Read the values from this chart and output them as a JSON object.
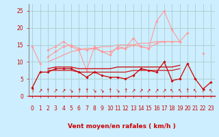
{
  "background_color": "#cceeff",
  "grid_color": "#aacccc",
  "x_labels": [
    "0",
    "1",
    "2",
    "3",
    "4",
    "5",
    "6",
    "7",
    "8",
    "9",
    "10",
    "11",
    "12",
    "13",
    "14",
    "15",
    "16",
    "17",
    "18",
    "19",
    "20",
    "21",
    "22",
    "23"
  ],
  "wind_arrows": [
    "↑",
    "↗",
    "↑",
    "↗",
    "↗",
    "↘",
    "↑",
    "↑",
    "↘",
    "↘",
    "↑",
    "↘",
    "↑",
    "↗",
    "↗",
    "↗",
    "↗",
    "↗",
    "↖",
    "↖",
    "↑",
    "↖",
    "↗",
    "↖"
  ],
  "xlabel": "Vent moyen/en rafales ( km/h )",
  "xlabel_color": "#cc0000",
  "xlabel_fontsize": 6.5,
  "yticks": [
    0,
    5,
    10,
    15,
    20,
    25
  ],
  "ylim": [
    0,
    27
  ],
  "xlim": [
    -0.5,
    23.5
  ],
  "tick_color": "#cc0000",
  "tick_fontsize": 5.5,
  "arrow_fontsize": 5.5,
  "series": [
    {
      "y": [
        14.5,
        9.5,
        null,
        null,
        null,
        null,
        null,
        null,
        null,
        null,
        null,
        null,
        null,
        null,
        null,
        null,
        null,
        null,
        null,
        null,
        null,
        null,
        null,
        null
      ],
      "color": "#ff9999",
      "linewidth": 0.8,
      "marker": "D",
      "markersize": 1.8,
      "zorder": 2
    },
    {
      "y": [
        null,
        null,
        13.5,
        14.5,
        16,
        14.5,
        13.5,
        7.5,
        14.5,
        13,
        12,
        14.5,
        14,
        17,
        14.5,
        14,
        22,
        25,
        19.5,
        16,
        18.5,
        null,
        12.5,
        null
      ],
      "color": "#ff9999",
      "linewidth": 0.8,
      "marker": "D",
      "markersize": 1.8,
      "zorder": 2
    },
    {
      "y": [
        null,
        null,
        11.5,
        13,
        14.5,
        15,
        14,
        13.5,
        14,
        13,
        13,
        14,
        14,
        15,
        14.5,
        14,
        15.5,
        16,
        16,
        16,
        null,
        null,
        null,
        null
      ],
      "color": "#ff9999",
      "linewidth": 0.8,
      "marker": "D",
      "markersize": 1.8,
      "zorder": 2
    },
    {
      "y": [
        null,
        null,
        10,
        11,
        12,
        13,
        13.5,
        14,
        14,
        14.5,
        14.5,
        15,
        15,
        15,
        15.5,
        15.5,
        16,
        16,
        16,
        16,
        null,
        null,
        null,
        null
      ],
      "color": "#ff9999",
      "linewidth": 0.9,
      "marker": null,
      "markersize": 0,
      "zorder": 1
    },
    {
      "y": [
        2.5,
        7,
        7,
        8,
        8,
        8,
        7,
        5.5,
        7,
        6,
        5.5,
        5.5,
        5,
        6,
        8,
        7.5,
        7,
        10,
        4.5,
        5,
        9.5,
        5,
        2,
        4
      ],
      "color": "#cc0000",
      "linewidth": 0.9,
      "marker": "D",
      "markersize": 1.8,
      "zorder": 4
    },
    {
      "y": [
        null,
        null,
        8,
        8.5,
        8.5,
        8.5,
        8,
        8,
        8,
        8,
        8,
        8.5,
        8.5,
        8.5,
        8.5,
        8.5,
        8.5,
        8.5,
        8.5,
        9,
        null,
        null,
        null,
        null
      ],
      "color": "#cc0000",
      "linewidth": 0.9,
      "marker": null,
      "markersize": 0,
      "zorder": 3
    },
    {
      "y": [
        null,
        null,
        7.5,
        7.5,
        7.5,
        7.5,
        7,
        7,
        7,
        7,
        7,
        7,
        7,
        7.5,
        7.5,
        7.5,
        7.5,
        7.5,
        7.5,
        8,
        null,
        null,
        null,
        null
      ],
      "color": "#cc0000",
      "linewidth": 0.8,
      "marker": null,
      "markersize": 0,
      "zorder": 3
    }
  ]
}
